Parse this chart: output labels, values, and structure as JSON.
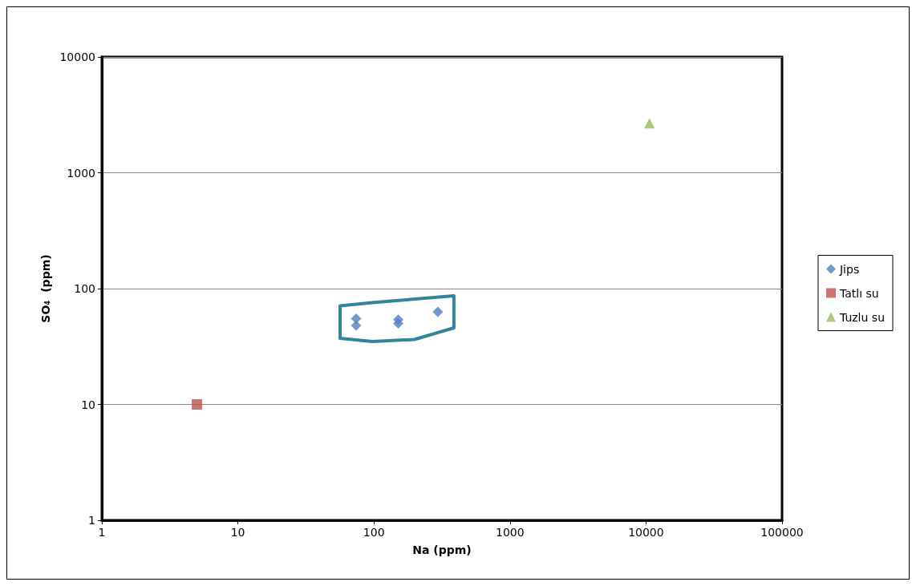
{
  "chart_data": {
    "type": "scatter",
    "xlabel": "Na (ppm)",
    "ylabel": "SO₄  (ppm)",
    "log": "xy",
    "xlim": [
      1,
      100000
    ],
    "xticks": [
      1,
      10,
      100,
      1000,
      10000,
      100000
    ],
    "ylim": [
      1,
      10000
    ],
    "yticks": [
      1,
      10,
      100,
      1000,
      10000
    ],
    "grid": "y",
    "legend": "right",
    "series": [
      {
        "name": "Jips",
        "color": "#4f81bd",
        "marker": "diamond",
        "x": [
          74,
          74,
          151,
          151,
          295
        ],
        "values": [
          55,
          48,
          54,
          50,
          63
        ]
      },
      {
        "name": "Tatlı su",
        "color": "#c0504d",
        "marker": "square",
        "x": [
          5
        ],
        "values": [
          10
        ]
      },
      {
        "name": "Tuzlu su",
        "color": "#9bbb59",
        "marker": "triangle",
        "x": [
          10600
        ],
        "values": [
          2680
        ]
      }
    ]
  }
}
